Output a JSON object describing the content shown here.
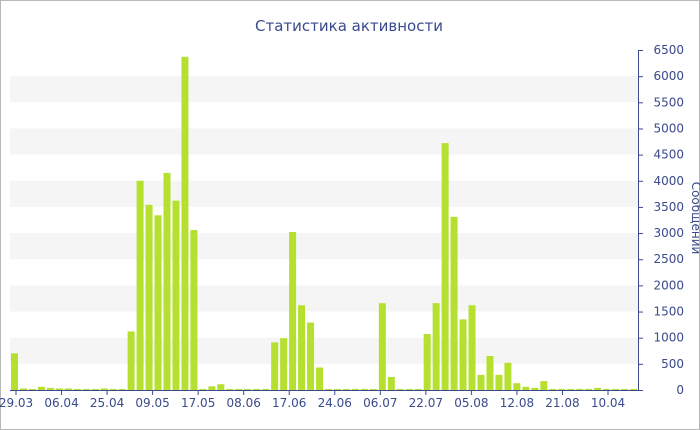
{
  "chart_data": {
    "type": "bar",
    "title": "Статистика активности",
    "xlabel": "",
    "ylabel": "Сообщений",
    "ylim": [
      0,
      6500
    ],
    "y_ticks": [
      0,
      500,
      1000,
      1500,
      2000,
      2500,
      3000,
      3500,
      4000,
      4500,
      5000,
      5500,
      6000,
      6500
    ],
    "y_axis_position": "right",
    "x_tick_labels": [
      "29.03",
      "06.04",
      "25.04",
      "09.05",
      "17.05",
      "08.06",
      "17.06",
      "24.06",
      "06.07",
      "22.07",
      "05.08",
      "12.08",
      "21.08",
      "10.04"
    ],
    "grid": true,
    "bar_color": "#b5e02f",
    "axis_color": "#3a4a8c",
    "values": [
      700,
      30,
      20,
      60,
      40,
      30,
      30,
      20,
      20,
      20,
      30,
      20,
      20,
      1120,
      4000,
      3540,
      3340,
      4150,
      3620,
      6370,
      3060,
      20,
      70,
      110,
      20,
      20,
      20,
      20,
      20,
      910,
      990,
      3020,
      1620,
      1290,
      430,
      20,
      20,
      20,
      20,
      20,
      20,
      1660,
      250,
      20,
      20,
      20,
      1070,
      1660,
      4720,
      3310,
      1350,
      1620,
      290,
      650,
      290,
      520,
      130,
      60,
      40,
      170,
      20,
      20,
      20,
      20,
      20,
      40,
      20,
      20,
      20,
      20
    ]
  }
}
